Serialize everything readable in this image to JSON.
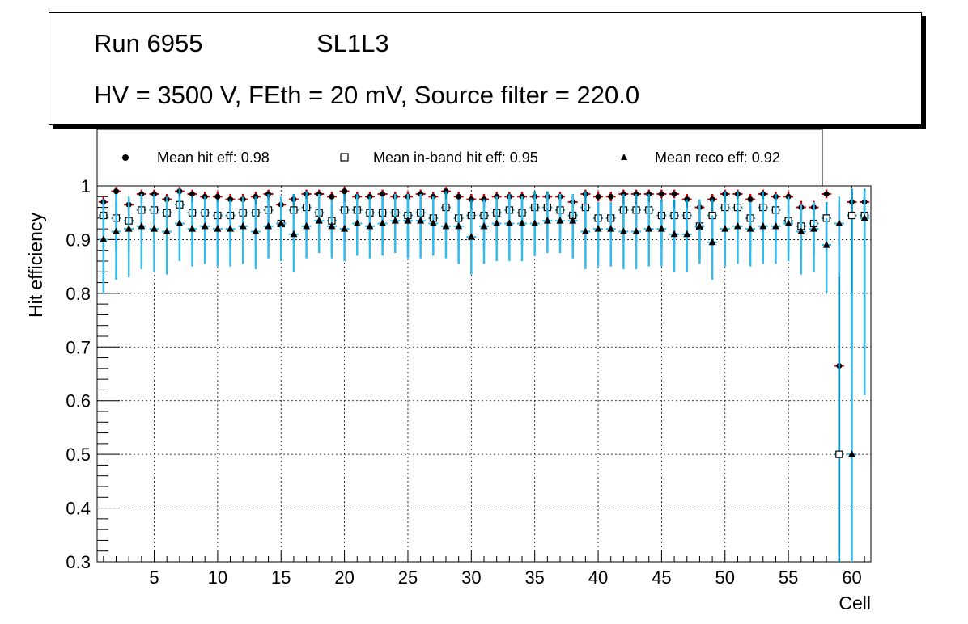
{
  "title_box": {
    "run": "Run 6955",
    "layer": "SL1L3",
    "settings": "HV = 3500 V, FEth = 20 mV, Source filter = 220.0"
  },
  "legend": {
    "hit": "Mean hit  eff: 0.98",
    "inband": "Mean in-band hit eff: 0.95",
    "reco": "Mean reco eff: 0.92"
  },
  "colors": {
    "hit_marker": "#000000",
    "hit_error": "#cc0000",
    "inband_marker": "#000000",
    "inband_error": "#0099cc",
    "reco_marker": "#000000",
    "reco_error": "#33bbee",
    "grid": "#000000"
  },
  "chart_data": {
    "type": "scatter",
    "xlabel": "Cell",
    "ylabel": "Hit efficiency",
    "xlim": [
      0.5,
      61.5
    ],
    "ylim": [
      0.3,
      1.0
    ],
    "xticks": [
      5,
      10,
      15,
      20,
      25,
      30,
      35,
      40,
      45,
      50,
      55,
      60
    ],
    "yticks": [
      0.3,
      0.4,
      0.5,
      0.6,
      0.7,
      0.8,
      0.9,
      1
    ],
    "x": [
      1,
      2,
      3,
      4,
      5,
      6,
      7,
      8,
      9,
      10,
      11,
      12,
      13,
      14,
      15,
      16,
      17,
      18,
      19,
      20,
      21,
      22,
      23,
      24,
      25,
      26,
      27,
      28,
      29,
      30,
      31,
      32,
      33,
      34,
      35,
      36,
      37,
      38,
      39,
      40,
      41,
      42,
      43,
      44,
      45,
      46,
      47,
      48,
      49,
      50,
      51,
      52,
      53,
      54,
      55,
      56,
      57,
      58,
      59,
      60,
      61
    ],
    "series": [
      {
        "name": "Mean hit eff",
        "marker": "circle",
        "values": [
          0.97,
          0.99,
          0.965,
          0.985,
          0.985,
          0.975,
          0.99,
          0.985,
          0.98,
          0.98,
          0.975,
          0.975,
          0.98,
          0.985,
          0.965,
          0.975,
          0.985,
          0.985,
          0.98,
          0.99,
          0.98,
          0.98,
          0.985,
          0.98,
          0.98,
          0.985,
          0.98,
          0.99,
          0.98,
          0.975,
          0.975,
          0.98,
          0.98,
          0.98,
          0.98,
          0.98,
          0.98,
          0.97,
          0.985,
          0.98,
          0.98,
          0.985,
          0.985,
          0.985,
          0.985,
          0.985,
          0.975,
          0.96,
          0.975,
          0.985,
          0.985,
          0.975,
          0.985,
          0.98,
          0.98,
          0.96,
          0.96,
          0.985,
          0.665,
          0.97,
          0.97
        ],
        "err_low": [
          0.012,
          0.008,
          0.012,
          0.008,
          0.008,
          0.01,
          0.008,
          0.008,
          0.009,
          0.009,
          0.01,
          0.01,
          0.009,
          0.008,
          0.012,
          0.01,
          0.008,
          0.008,
          0.009,
          0.008,
          0.009,
          0.009,
          0.008,
          0.009,
          0.009,
          0.008,
          0.009,
          0.008,
          0.009,
          0.01,
          0.01,
          0.009,
          0.009,
          0.009,
          0.009,
          0.009,
          0.009,
          0.011,
          0.008,
          0.009,
          0.009,
          0.008,
          0.008,
          0.008,
          0.008,
          0.008,
          0.01,
          0.014,
          0.01,
          0.008,
          0.008,
          0.01,
          0.008,
          0.009,
          0.009,
          0.014,
          0.014,
          0.008,
          0.35,
          0.02,
          0.02
        ],
        "err_high": [
          0.01,
          0.008,
          0.01,
          0.008,
          0.008,
          0.01,
          0.008,
          0.008,
          0.009,
          0.009,
          0.01,
          0.01,
          0.009,
          0.008,
          0.01,
          0.01,
          0.008,
          0.008,
          0.009,
          0.008,
          0.009,
          0.009,
          0.008,
          0.009,
          0.009,
          0.008,
          0.009,
          0.008,
          0.009,
          0.01,
          0.01,
          0.009,
          0.009,
          0.009,
          0.009,
          0.009,
          0.009,
          0.01,
          0.008,
          0.009,
          0.009,
          0.008,
          0.008,
          0.008,
          0.008,
          0.008,
          0.01,
          0.012,
          0.01,
          0.008,
          0.008,
          0.01,
          0.008,
          0.009,
          0.009,
          0.012,
          0.012,
          0.008,
          0.3,
          0.02,
          0.02
        ]
      },
      {
        "name": "Mean in-band hit eff",
        "marker": "open-square",
        "values": [
          0.945,
          0.94,
          0.935,
          0.955,
          0.955,
          0.95,
          0.965,
          0.95,
          0.95,
          0.945,
          0.945,
          0.95,
          0.95,
          0.955,
          0.93,
          0.955,
          0.96,
          0.95,
          0.935,
          0.955,
          0.955,
          0.95,
          0.95,
          0.95,
          0.945,
          0.95,
          0.94,
          0.96,
          0.94,
          0.945,
          0.945,
          0.95,
          0.955,
          0.95,
          0.96,
          0.96,
          0.955,
          0.945,
          0.96,
          0.94,
          0.94,
          0.955,
          0.955,
          0.955,
          0.945,
          0.945,
          0.945,
          0.925,
          0.945,
          0.96,
          0.96,
          0.94,
          0.96,
          0.955,
          0.935,
          0.925,
          0.93,
          0.94,
          0.5,
          0.945,
          0.945
        ],
        "err_low": [
          0.06,
          0.06,
          0.06,
          0.06,
          0.06,
          0.06,
          0.06,
          0.06,
          0.06,
          0.06,
          0.06,
          0.06,
          0.06,
          0.06,
          0.06,
          0.06,
          0.06,
          0.06,
          0.06,
          0.06,
          0.06,
          0.06,
          0.06,
          0.06,
          0.06,
          0.06,
          0.06,
          0.06,
          0.06,
          0.06,
          0.06,
          0.06,
          0.06,
          0.06,
          0.06,
          0.06,
          0.06,
          0.06,
          0.06,
          0.06,
          0.06,
          0.06,
          0.06,
          0.06,
          0.06,
          0.06,
          0.06,
          0.06,
          0.06,
          0.06,
          0.06,
          0.06,
          0.06,
          0.06,
          0.06,
          0.06,
          0.06,
          0.06,
          0.4,
          0.25,
          0.25
        ],
        "err_high": [
          0.03,
          0.03,
          0.03,
          0.03,
          0.03,
          0.03,
          0.03,
          0.03,
          0.03,
          0.03,
          0.03,
          0.03,
          0.03,
          0.03,
          0.03,
          0.03,
          0.03,
          0.03,
          0.03,
          0.03,
          0.03,
          0.03,
          0.03,
          0.03,
          0.03,
          0.03,
          0.03,
          0.03,
          0.03,
          0.03,
          0.03,
          0.03,
          0.03,
          0.03,
          0.03,
          0.03,
          0.03,
          0.03,
          0.03,
          0.03,
          0.03,
          0.03,
          0.03,
          0.03,
          0.03,
          0.03,
          0.03,
          0.03,
          0.03,
          0.03,
          0.03,
          0.03,
          0.03,
          0.03,
          0.03,
          0.03,
          0.03,
          0.03,
          0.4,
          0.05,
          0.05
        ]
      },
      {
        "name": "Mean reco eff",
        "marker": "triangle",
        "values": [
          0.9,
          0.915,
          0.92,
          0.925,
          0.92,
          0.915,
          0.93,
          0.92,
          0.925,
          0.92,
          0.92,
          0.925,
          0.915,
          0.925,
          0.93,
          0.91,
          0.925,
          0.935,
          0.925,
          0.92,
          0.93,
          0.925,
          0.93,
          0.935,
          0.935,
          0.935,
          0.93,
          0.925,
          0.925,
          0.905,
          0.925,
          0.93,
          0.93,
          0.93,
          0.93,
          0.935,
          0.935,
          0.935,
          0.915,
          0.92,
          0.92,
          0.915,
          0.915,
          0.92,
          0.92,
          0.91,
          0.91,
          0.925,
          0.895,
          0.92,
          0.925,
          0.92,
          0.925,
          0.925,
          0.93,
          0.915,
          0.92,
          0.89,
          0.93,
          0.5,
          0.94
        ],
        "err_low": [
          0.1,
          0.09,
          0.09,
          0.08,
          0.08,
          0.08,
          0.07,
          0.07,
          0.07,
          0.07,
          0.07,
          0.07,
          0.07,
          0.06,
          0.07,
          0.07,
          0.06,
          0.06,
          0.06,
          0.06,
          0.06,
          0.06,
          0.06,
          0.06,
          0.07,
          0.07,
          0.06,
          0.06,
          0.07,
          0.07,
          0.07,
          0.07,
          0.07,
          0.07,
          0.06,
          0.06,
          0.06,
          0.07,
          0.07,
          0.07,
          0.07,
          0.07,
          0.07,
          0.07,
          0.07,
          0.07,
          0.07,
          0.07,
          0.07,
          0.07,
          0.07,
          0.07,
          0.07,
          0.07,
          0.07,
          0.08,
          0.08,
          0.09,
          0.1,
          0.35,
          0.33
        ],
        "err_high": [
          0.07,
          0.07,
          0.06,
          0.06,
          0.06,
          0.06,
          0.05,
          0.05,
          0.05,
          0.05,
          0.05,
          0.05,
          0.05,
          0.05,
          0.05,
          0.05,
          0.05,
          0.05,
          0.05,
          0.05,
          0.05,
          0.05,
          0.05,
          0.05,
          0.05,
          0.05,
          0.05,
          0.05,
          0.05,
          0.05,
          0.05,
          0.05,
          0.05,
          0.05,
          0.05,
          0.05,
          0.05,
          0.05,
          0.05,
          0.05,
          0.05,
          0.05,
          0.05,
          0.05,
          0.05,
          0.05,
          0.05,
          0.05,
          0.05,
          0.05,
          0.05,
          0.05,
          0.05,
          0.05,
          0.05,
          0.05,
          0.05,
          0.05,
          0.05,
          0.3,
          0.05
        ]
      }
    ]
  }
}
